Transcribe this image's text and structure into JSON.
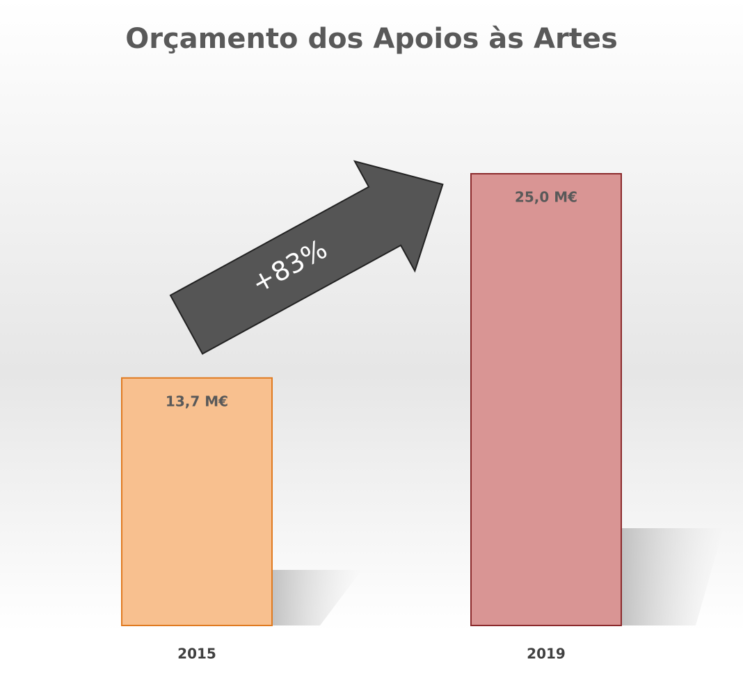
{
  "chart_data": {
    "type": "bar",
    "title": "Orçamento dos Apoios às Artes",
    "categories": [
      "2015",
      "2019"
    ],
    "values": [
      13.7,
      25.0
    ],
    "value_labels": [
      "13,7 M€",
      "25,0 M€"
    ],
    "colors": [
      "#f8c08f",
      "#d99594"
    ],
    "edge_colors": [
      "#e07a20",
      "#8b2a2c"
    ],
    "ylim": [
      0,
      25
    ],
    "annotation": "+83%"
  }
}
